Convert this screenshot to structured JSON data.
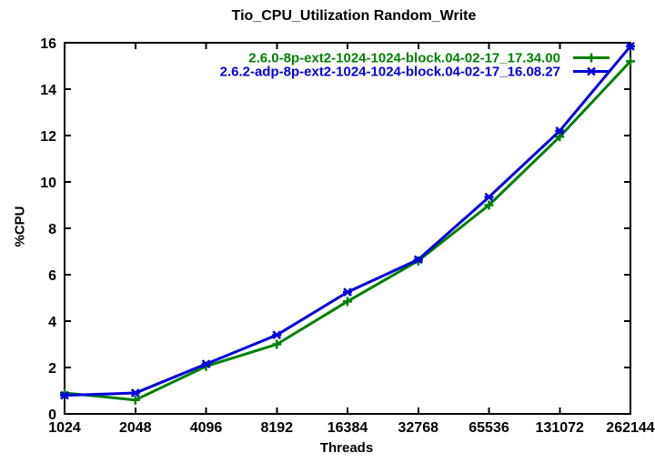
{
  "window": {
    "title": "Tio_CPU_Utilization Random_Write"
  },
  "chart_data": {
    "type": "line",
    "title": "Tio_CPU_Utilization Random_Write",
    "xlabel": "Threads",
    "ylabel": "%CPU",
    "x_scale": "categorical-log2",
    "categories": [
      "1024",
      "2048",
      "4096",
      "8192",
      "16384",
      "32768",
      "65536",
      "131072",
      "262144"
    ],
    "ylim": [
      0,
      16
    ],
    "ytick_step": 2,
    "ytick_labels": [
      "0",
      "2",
      "4",
      "6",
      "8",
      "10",
      "12",
      "14",
      "16"
    ],
    "grid": false,
    "legend_position": "top-right-inside",
    "background_color": "#ffffff",
    "axis_color": "#000000",
    "text_color": "#000000",
    "series": [
      {
        "name": "2.6.0-8p-ext2-1024-1024-block.04-02-17_17.34.00",
        "color": "#008000",
        "marker": "plus",
        "values": [
          0.9,
          0.6,
          2.05,
          3.0,
          4.85,
          6.6,
          9.0,
          11.95,
          15.2
        ]
      },
      {
        "name": "2.6.2-adp-8p-ext2-1024-1024-block.04-02-17_16.08.27",
        "color": "#0000dd",
        "marker": "star",
        "values": [
          0.8,
          0.9,
          2.15,
          3.4,
          5.25,
          6.65,
          9.35,
          12.2,
          15.85
        ]
      }
    ]
  }
}
